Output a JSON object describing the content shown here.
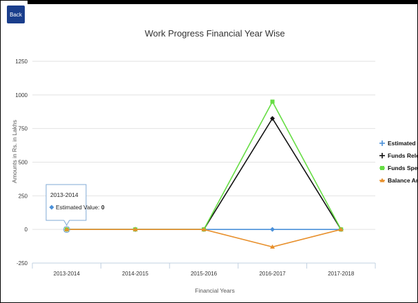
{
  "header": {
    "back_label": "Back"
  },
  "chart_data": {
    "type": "line",
    "title": "Work Progress Financial Year Wise",
    "xlabel": "Financial Years",
    "ylabel": "Amounts in Rs. in Lakhs",
    "categories": [
      "2013-2014",
      "2014-2015",
      "2015-2016",
      "2016-2017",
      "2017-2018"
    ],
    "ylim": [
      -250,
      1250
    ],
    "yticks": [
      -250,
      0,
      250,
      500,
      750,
      1000,
      1250
    ],
    "grid": true,
    "legend_position": "right",
    "series": [
      {
        "name": "Estimated Value",
        "color": "#4a90d9",
        "marker": "diamond",
        "values": [
          0,
          0,
          0,
          0,
          0
        ]
      },
      {
        "name": "Funds Released",
        "color": "#111111",
        "marker": "diamond",
        "values": [
          0,
          0,
          0,
          825,
          0
        ]
      },
      {
        "name": "Funds Spent",
        "color": "#66dd44",
        "marker": "square",
        "values": [
          0,
          0,
          0,
          950,
          0
        ]
      },
      {
        "name": "Balance Amount",
        "color": "#e8902c",
        "marker": "triangle",
        "values": [
          0,
          0,
          0,
          -130,
          0
        ]
      }
    ],
    "tooltip": {
      "category": "2013-2014",
      "series": "Estimated Value",
      "label": "Estimated Value:",
      "value": "0"
    }
  }
}
